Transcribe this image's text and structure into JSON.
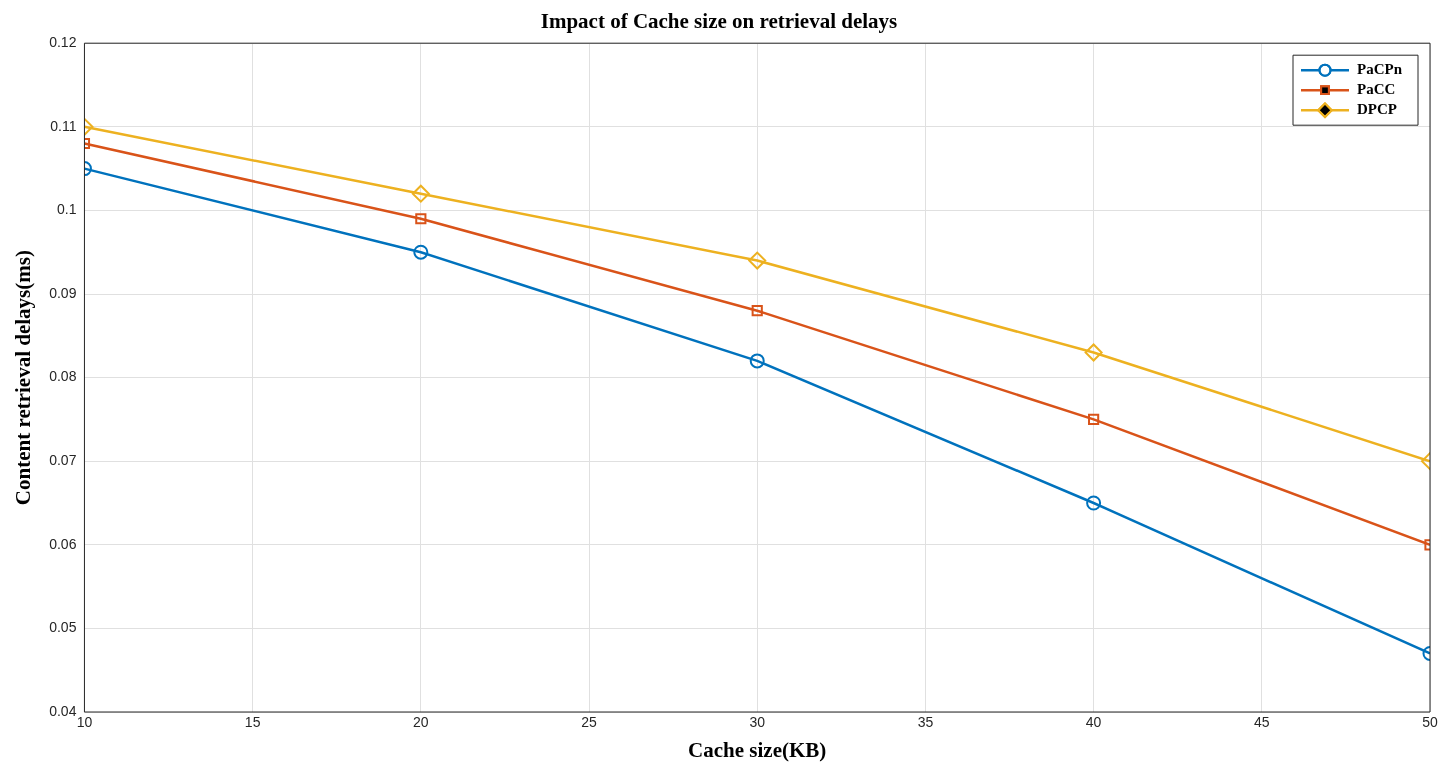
{
  "chart_data": {
    "type": "line",
    "title": "Impact of Cache size on retrieval delays",
    "xlabel": "Cache size(KB)",
    "ylabel": "Content retrieval delays(ms)",
    "x": [
      10,
      20,
      30,
      40,
      50
    ],
    "series": [
      {
        "name": "PaCPn",
        "color": "#0072bd",
        "marker": "circle",
        "values": [
          0.105,
          0.095,
          0.082,
          0.065,
          0.047
        ]
      },
      {
        "name": "PaCC",
        "color": "#d95319",
        "marker": "square",
        "values": [
          0.108,
          0.099,
          0.088,
          0.075,
          0.06
        ]
      },
      {
        "name": "DPCP",
        "color": "#edb120",
        "marker": "diamond",
        "values": [
          0.11,
          0.102,
          0.094,
          0.083,
          0.07
        ]
      }
    ],
    "xlim": [
      10,
      50
    ],
    "xticks": [
      10,
      15,
      20,
      25,
      30,
      35,
      40,
      45,
      50
    ],
    "ylim": [
      0.04,
      0.12
    ],
    "yticks": [
      0.04,
      0.05,
      0.06,
      0.07,
      0.08,
      0.09,
      0.1,
      0.11,
      0.12
    ],
    "grid": true,
    "legend": "top right",
    "line_style": "solid"
  }
}
